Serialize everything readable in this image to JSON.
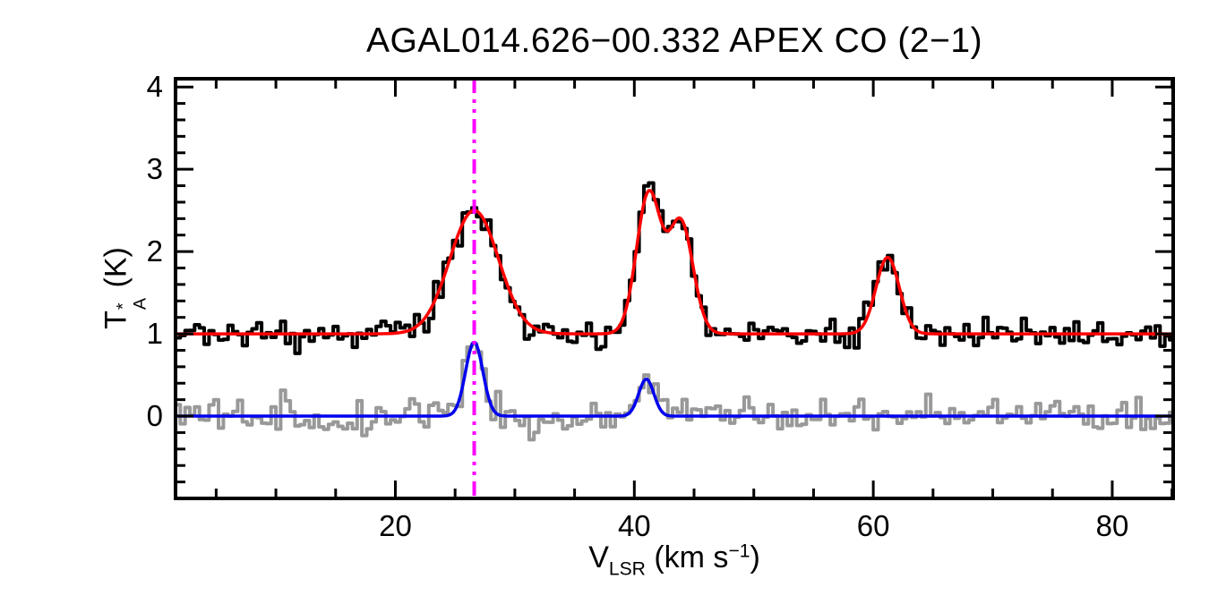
{
  "labels": {
    "title": "AGAL014.626−00.332  APEX CO (2−1)",
    "y_pre": "T",
    "y_sup": "*",
    "y_sub": "A",
    "y_post": " (K)",
    "x_pre": "V",
    "x_sub": "LSR",
    "x_mid": " (km s",
    "x_sup": "−1",
    "x_post": ")"
  },
  "chart_data": {
    "type": "line",
    "title": "AGAL014.626−00.332  APEX CO (2−1)",
    "xlabel": "V_LSR (km s−1)",
    "ylabel": "T*_A (K)",
    "xlim": [
      1.6,
      85.1
    ],
    "ylim": [
      -1.0,
      4.1
    ],
    "xticks": [
      20,
      40,
      60,
      80
    ],
    "xtick_labels": [
      "20",
      "40",
      "60",
      "80"
    ],
    "xtick_minor_step": 5,
    "yticks": [
      0,
      1,
      2,
      3,
      4
    ],
    "ytick_labels": [
      "0",
      "1",
      "2",
      "3",
      "4"
    ],
    "ytick_minor_step": 0.2,
    "grid": false,
    "background": "#ffffff",
    "frame_color": "#000000",
    "vline": {
      "x": 26.6,
      "color": "#ff00ff",
      "style": "dash-dot-dot",
      "name": "velocity-marker"
    },
    "series": [
      {
        "name": "co21-observed-spectrum",
        "role": "histogram",
        "color": "#000000",
        "baseline": 1.0,
        "noise_sigma": 0.085,
        "bin_width": 0.4,
        "seed": 20,
        "components": [
          {
            "center": 26.6,
            "amplitude": 1.5,
            "fwhm": 4.8
          },
          {
            "center": 41.2,
            "amplitude": 1.7,
            "fwhm": 2.4
          },
          {
            "center": 43.9,
            "amplitude": 1.35,
            "fwhm": 2.4
          },
          {
            "center": 61.2,
            "amplitude": 0.93,
            "fwhm": 2.3
          }
        ]
      },
      {
        "name": "co21-gaussian-fit",
        "role": "curve",
        "color": "#ff0000",
        "baseline": 1.0,
        "components": [
          {
            "center": 26.6,
            "amplitude": 1.5,
            "fwhm": 4.8
          },
          {
            "center": 41.2,
            "amplitude": 1.7,
            "fwhm": 2.4
          },
          {
            "center": 43.9,
            "amplitude": 1.35,
            "fwhm": 2.4
          },
          {
            "center": 61.2,
            "amplitude": 0.93,
            "fwhm": 2.3
          }
        ]
      },
      {
        "name": "secondary-observed-spectrum",
        "role": "histogram",
        "color": "#999999",
        "baseline": 0.0,
        "noise_sigma": 0.11,
        "bin_width": 0.4,
        "seed": 77,
        "components": [
          {
            "center": 26.6,
            "amplitude": 0.9,
            "fwhm": 1.7
          },
          {
            "center": 41.0,
            "amplitude": 0.45,
            "fwhm": 1.5
          }
        ]
      },
      {
        "name": "secondary-gaussian-fit",
        "role": "curve",
        "color": "#0000ee",
        "baseline": 0.0,
        "components": [
          {
            "center": 26.6,
            "amplitude": 0.9,
            "fwhm": 1.7
          },
          {
            "center": 41.0,
            "amplitude": 0.45,
            "fwhm": 1.5
          }
        ]
      }
    ]
  }
}
